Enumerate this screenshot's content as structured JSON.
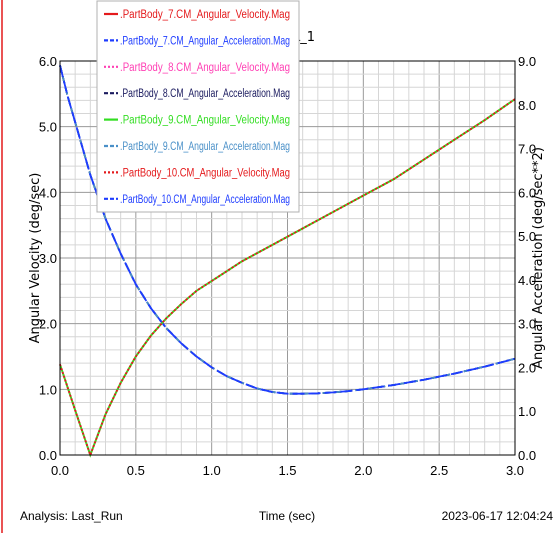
{
  "chart_data": {
    "type": "line",
    "title": "L_1",
    "xlabel": "Time (sec)",
    "ylabel_left": "Angular Velocity (deg/sec)",
    "ylabel_right": "Angular Acceleration (deg/sec**2)",
    "xlim": [
      0.0,
      3.0
    ],
    "ylim_left": [
      0.0,
      6.0
    ],
    "ylim_right": [
      0.0,
      9.0
    ],
    "x_ticks": [
      "0.0",
      "0.5",
      "1.0",
      "1.5",
      "2.0",
      "2.5",
      "3.0"
    ],
    "y_left_ticks": [
      "0.0",
      "1.0",
      "2.0",
      "3.0",
      "4.0",
      "5.0",
      "6.0"
    ],
    "y_right_ticks": [
      "0.0",
      "1.0",
      "2.0",
      "3.0",
      "4.0",
      "5.0",
      "6.0",
      "7.0",
      "8.0",
      "9.0"
    ],
    "grid": true,
    "legend_position": "top-left",
    "series": [
      {
        "name": ".PartBody_7.CM_Angular_Velocity.Mag",
        "axis": "left",
        "color": "#e41a1c",
        "style": "solid",
        "x": [
          0.0,
          0.1,
          0.2,
          0.3,
          0.4,
          0.5,
          0.6,
          0.7,
          0.8,
          0.9,
          1.0,
          1.2,
          1.4,
          1.6,
          1.8,
          2.0,
          2.2,
          2.4,
          2.6,
          2.8,
          3.0
        ],
        "y": [
          1.38,
          0.68,
          0.0,
          0.62,
          1.1,
          1.5,
          1.82,
          2.08,
          2.3,
          2.5,
          2.65,
          2.95,
          3.2,
          3.45,
          3.7,
          3.95,
          4.2,
          4.5,
          4.8,
          5.1,
          5.42
        ]
      },
      {
        "name": ".PartBody_7.CM_Angular_Acceleration.Mag",
        "axis": "right",
        "color": "#1e3cff",
        "style": "dashed",
        "x": [
          0.0,
          0.05,
          0.1,
          0.2,
          0.3,
          0.4,
          0.5,
          0.6,
          0.7,
          0.8,
          0.9,
          1.0,
          1.1,
          1.2,
          1.3,
          1.4,
          1.5,
          1.6,
          1.7,
          1.8,
          1.9,
          2.0,
          2.2,
          2.4,
          2.6,
          2.8,
          3.0
        ],
        "y": [
          8.9,
          8.2,
          7.6,
          6.4,
          5.4,
          4.6,
          3.9,
          3.35,
          2.9,
          2.55,
          2.25,
          2.0,
          1.8,
          1.65,
          1.52,
          1.44,
          1.4,
          1.4,
          1.41,
          1.43,
          1.46,
          1.5,
          1.6,
          1.72,
          1.86,
          2.02,
          2.2
        ]
      },
      {
        "name": ".PartBody_8.CM_Angular_Velocity.Mag",
        "axis": "left",
        "color": "#ff3fb4",
        "style": "dotted",
        "x": [
          0.0,
          0.1,
          0.2,
          0.3,
          0.4,
          0.5,
          0.6,
          0.7,
          0.8,
          0.9,
          1.0,
          1.2,
          1.4,
          1.6,
          1.8,
          2.0,
          2.2,
          2.4,
          2.6,
          2.8,
          3.0
        ],
        "y": [
          1.38,
          0.68,
          0.0,
          0.62,
          1.1,
          1.5,
          1.82,
          2.08,
          2.3,
          2.5,
          2.65,
          2.95,
          3.2,
          3.45,
          3.7,
          3.95,
          4.2,
          4.5,
          4.8,
          5.1,
          5.42
        ]
      },
      {
        "name": ".PartBody_8.CM_Angular_Acceleration.Mag",
        "axis": "right",
        "color": "#1a1a5e",
        "style": "dashed",
        "x": [
          0.0,
          0.05,
          0.1,
          0.2,
          0.3,
          0.4,
          0.5,
          0.6,
          0.7,
          0.8,
          0.9,
          1.0,
          1.1,
          1.2,
          1.3,
          1.4,
          1.5,
          1.6,
          1.7,
          1.8,
          1.9,
          2.0,
          2.2,
          2.4,
          2.6,
          2.8,
          3.0
        ],
        "y": [
          8.9,
          8.2,
          7.6,
          6.4,
          5.4,
          4.6,
          3.9,
          3.35,
          2.9,
          2.55,
          2.25,
          2.0,
          1.8,
          1.65,
          1.52,
          1.44,
          1.4,
          1.4,
          1.41,
          1.43,
          1.46,
          1.5,
          1.6,
          1.72,
          1.86,
          2.02,
          2.2
        ]
      },
      {
        "name": ".PartBody_9.CM_Angular_Velocity.Mag",
        "axis": "left",
        "color": "#33dd22",
        "style": "solid",
        "x": [
          0.0,
          0.1,
          0.2,
          0.3,
          0.4,
          0.5,
          0.6,
          0.7,
          0.8,
          0.9,
          1.0,
          1.2,
          1.4,
          1.6,
          1.8,
          2.0,
          2.2,
          2.4,
          2.6,
          2.8,
          3.0
        ],
        "y": [
          1.38,
          0.68,
          0.0,
          0.62,
          1.1,
          1.5,
          1.82,
          2.08,
          2.3,
          2.5,
          2.65,
          2.95,
          3.2,
          3.45,
          3.7,
          3.95,
          4.2,
          4.5,
          4.8,
          5.1,
          5.42
        ]
      },
      {
        "name": ".PartBody_9.CM_Angular_Acceleration.Mag",
        "axis": "right",
        "color": "#4a90c8",
        "style": "dashed",
        "x": [
          0.0,
          0.05,
          0.1,
          0.2,
          0.3,
          0.4,
          0.5,
          0.6,
          0.7,
          0.8,
          0.9,
          1.0,
          1.1,
          1.2,
          1.3,
          1.4,
          1.5,
          1.6,
          1.7,
          1.8,
          1.9,
          2.0,
          2.2,
          2.4,
          2.6,
          2.8,
          3.0
        ],
        "y": [
          8.9,
          8.2,
          7.6,
          6.4,
          5.4,
          4.6,
          3.9,
          3.35,
          2.9,
          2.55,
          2.25,
          2.0,
          1.8,
          1.65,
          1.52,
          1.44,
          1.4,
          1.4,
          1.41,
          1.43,
          1.46,
          1.5,
          1.6,
          1.72,
          1.86,
          2.02,
          2.2
        ]
      },
      {
        "name": ".PartBody_10.CM_Angular_Velocity.Mag",
        "axis": "left",
        "color": "#e41a1c",
        "style": "dotted",
        "x": [
          0.0,
          0.1,
          0.2,
          0.3,
          0.4,
          0.5,
          0.6,
          0.7,
          0.8,
          0.9,
          1.0,
          1.2,
          1.4,
          1.6,
          1.8,
          2.0,
          2.2,
          2.4,
          2.6,
          2.8,
          3.0
        ],
        "y": [
          1.38,
          0.68,
          0.0,
          0.62,
          1.1,
          1.5,
          1.82,
          2.08,
          2.3,
          2.5,
          2.65,
          2.95,
          3.2,
          3.45,
          3.7,
          3.95,
          4.2,
          4.5,
          4.8,
          5.1,
          5.42
        ]
      },
      {
        "name": ".PartBody_10.CM_Angular_Acceleration.Mag",
        "axis": "right",
        "color": "#1e3cff",
        "style": "longdash",
        "x": [
          0.0,
          0.05,
          0.1,
          0.2,
          0.3,
          0.4,
          0.5,
          0.6,
          0.7,
          0.8,
          0.9,
          1.0,
          1.1,
          1.2,
          1.3,
          1.4,
          1.5,
          1.6,
          1.7,
          1.8,
          1.9,
          2.0,
          2.2,
          2.4,
          2.6,
          2.8,
          3.0
        ],
        "y": [
          8.9,
          8.2,
          7.6,
          6.4,
          5.4,
          4.6,
          3.9,
          3.35,
          2.9,
          2.55,
          2.25,
          2.0,
          1.8,
          1.65,
          1.52,
          1.44,
          1.4,
          1.4,
          1.41,
          1.43,
          1.46,
          1.5,
          1.6,
          1.72,
          1.86,
          2.02,
          2.2
        ]
      }
    ]
  },
  "footer": {
    "analysis": "Analysis: Last_Run",
    "timestamp": "2023-06-17 12:04:24"
  }
}
